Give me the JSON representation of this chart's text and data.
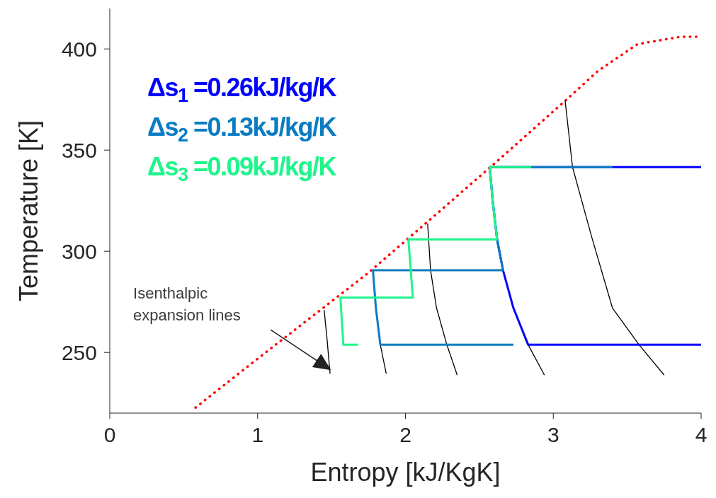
{
  "chart_data": {
    "type": "line",
    "xlabel": "Entropy [kJ/KgK]",
    "ylabel": "Temperature [K]",
    "xlim": [
      0,
      4
    ],
    "xticks": [
      0,
      1,
      2,
      3,
      4
    ],
    "ylim": [
      220,
      420
    ],
    "yticks": [
      250,
      300,
      350,
      400
    ],
    "legend": "top left",
    "marker": "none",
    "series": [
      {
        "color": "#ff0000",
        "line_style": "dotted",
        "x": [
          0.58,
          1.0,
          1.74,
          2.2,
          2.64,
          3.09,
          3.3,
          3.57,
          3.86,
          4.0
        ],
        "values": [
          222.7,
          246.9,
          288.8,
          317.8,
          345.8,
          375,
          389,
          402.4,
          406,
          406
        ]
      },
      {
        "color": "#000000",
        "x": [
          1.45,
          1.47,
          1.49
        ],
        "values": [
          271,
          256.3,
          239.5
        ]
      },
      {
        "color": "#000000",
        "x": [
          1.83,
          1.87
        ],
        "values": [
          253.8,
          239.5
        ]
      },
      {
        "color": "#000000",
        "x": [
          2.15,
          2.17,
          2.21,
          2.28,
          2.35
        ],
        "values": [
          313.6,
          290.6,
          272,
          253.8,
          238.8
        ]
      },
      {
        "color": "#000000",
        "x": [
          2.83,
          2.94
        ],
        "values": [
          253.8,
          238.8
        ]
      },
      {
        "color": "#000000",
        "x": [
          3.08,
          3.13,
          3.26,
          3.4,
          3.58,
          3.75
        ],
        "values": [
          374.5,
          341.6,
          307,
          272,
          253.8,
          238.8
        ]
      },
      {
        "name": "Δs$_{1}$ =0.26kJ/kg/K",
        "color": "#0000ff",
        "x": [
          4,
          2.57,
          2.59,
          2.62,
          2.66,
          2.73,
          2.83,
          4
        ],
        "values": [
          341.6,
          341.6,
          325,
          305.8,
          290.6,
          272,
          253.8,
          253.8
        ]
      },
      {
        "name": "Δs$_{2}$ =0.13kJ/kg/K",
        "color": "#0b7cc1",
        "x": [
          3.4,
          2.57,
          2.59,
          2.62,
          2.66,
          1.78,
          1.8,
          1.83,
          2.73
        ],
        "values": [
          341.6,
          341.6,
          325,
          305.8,
          290.6,
          290.6,
          272,
          253.8,
          253.8
        ]
      },
      {
        "name": "Δs$_{3}$ =0.09kJ/kg/K",
        "color": "#1ef58a",
        "x": [
          2.85,
          2.57,
          2.59,
          2.62,
          2.02,
          2.05,
          1.56,
          1.58,
          1.68
        ],
        "values": [
          341.6,
          341.6,
          325,
          305.8,
          305.8,
          277.1,
          277.1,
          253.8,
          253.8
        ]
      }
    ],
    "annotations": [
      "Isenthalpic\nexpansion lines"
    ]
  }
}
